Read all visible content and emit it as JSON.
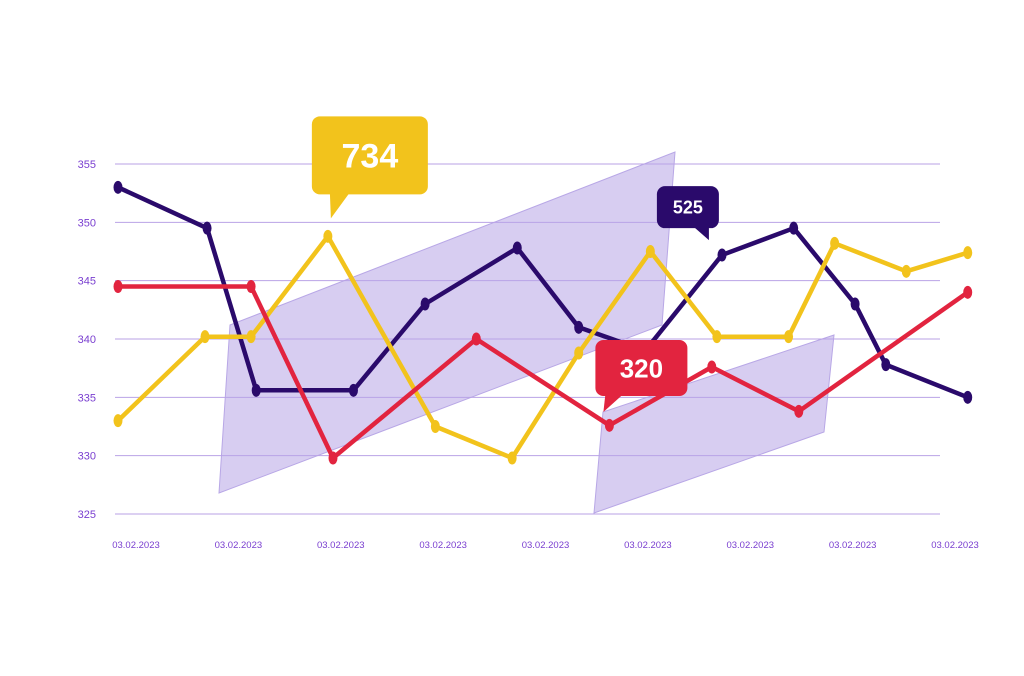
{
  "chart_data": {
    "type": "line",
    "title": "",
    "xlabel": "",
    "ylabel": "",
    "ylim": [
      325,
      355
    ],
    "yticks": [
      325,
      330,
      335,
      340,
      345,
      350,
      355
    ],
    "x_tick_labels": [
      "03.02.2023",
      "03.02.2023",
      "03.02.2023",
      "03.02.2023",
      "03.02.2023",
      "03.02.2023",
      "03.02.2023",
      "03.02.2023",
      "03.02.2023"
    ],
    "grid": true,
    "colors": {
      "grid": "#b9a2e6",
      "tick_text": "#7a3fd0",
      "band": "#c9bcec",
      "band_stroke": "#b8a7e6"
    },
    "series": [
      {
        "color": "#2a0a6b",
        "points": [
          [
            0,
            353
          ],
          [
            0.87,
            349.5
          ],
          [
            1.35,
            335.6
          ],
          [
            2.3,
            335.6
          ],
          [
            3.0,
            343
          ],
          [
            3.9,
            347.8
          ],
          [
            4.5,
            341
          ],
          [
            5.15,
            339
          ],
          [
            5.9,
            347.2
          ],
          [
            6.6,
            349.5
          ],
          [
            7.2,
            343
          ],
          [
            7.5,
            337.8
          ],
          [
            8.3,
            335
          ]
        ]
      },
      {
        "color": "#f2c31c",
        "points": [
          [
            0,
            333
          ],
          [
            0.85,
            340.2
          ],
          [
            1.3,
            340.2
          ],
          [
            2.05,
            348.8
          ],
          [
            3.1,
            332.5
          ],
          [
            3.85,
            329.8
          ],
          [
            4.5,
            338.8
          ],
          [
            5.2,
            347.5
          ],
          [
            5.85,
            340.2
          ],
          [
            6.55,
            340.2
          ],
          [
            7.0,
            348.2
          ],
          [
            7.7,
            345.8
          ],
          [
            8.3,
            347.4
          ]
        ]
      },
      {
        "color": "#e2243f",
        "points": [
          [
            0,
            344.5
          ],
          [
            1.3,
            344.5
          ],
          [
            2.1,
            329.8
          ],
          [
            3.5,
            340
          ],
          [
            4.8,
            332.6
          ],
          [
            5.8,
            337.6
          ],
          [
            6.65,
            333.8
          ],
          [
            8.3,
            344
          ]
        ]
      }
    ],
    "callouts": [
      {
        "label": "734",
        "color": "#f2c31c",
        "x": 2.05,
        "y": 348.8
      },
      {
        "label": "525",
        "color": "#2a0a6b",
        "x": 5.85,
        "y": 350.7
      },
      {
        "label": "320",
        "color": "#e2243f",
        "x": 4.8,
        "y": 334.6
      }
    ]
  }
}
